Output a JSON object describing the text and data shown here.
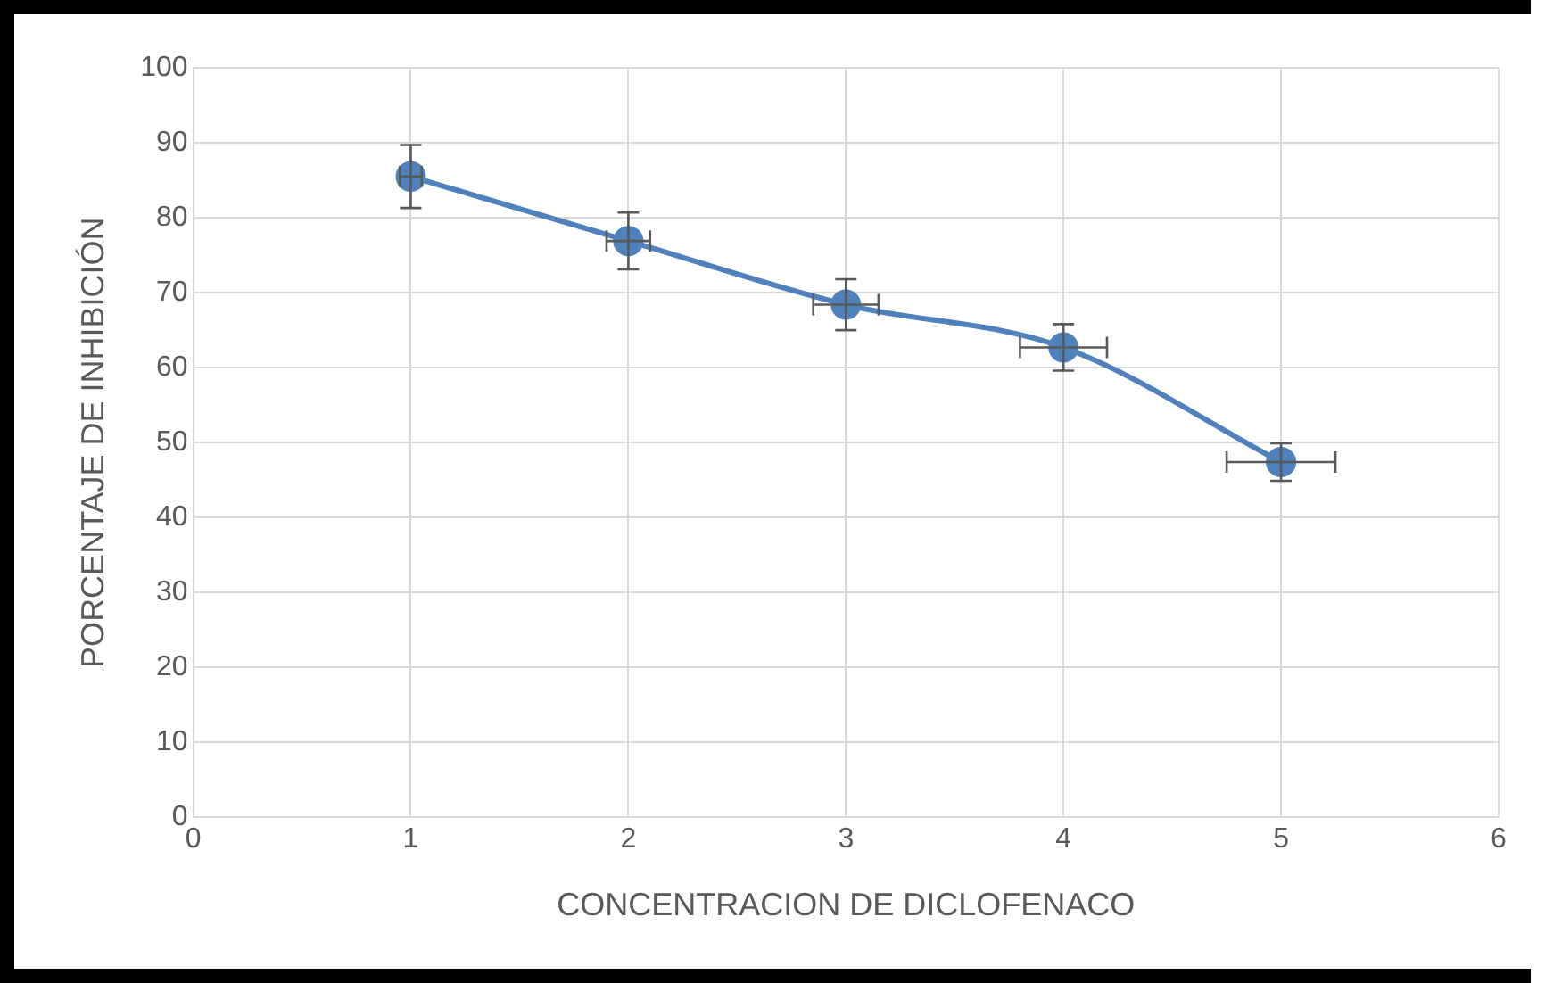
{
  "chart_data": {
    "type": "line",
    "xlabel": "CONCENTRACION DE DICLOFENACO",
    "ylabel": "PORCENTAJE DE INHIBICIÓN",
    "x": [
      1,
      2,
      3,
      4,
      5
    ],
    "series": [
      {
        "color": "#4f81bd",
        "values": [
          85.5,
          76.9,
          68.4,
          62.7,
          47.4
        ],
        "errors": [
          4.2,
          3.8,
          3.4,
          3.1,
          2.5
        ],
        "xerrors": [
          0.05,
          0.1,
          0.15,
          0.2,
          0.25
        ]
      }
    ],
    "xlim": [
      0,
      6
    ],
    "xticks": [
      0,
      1,
      2,
      3,
      4,
      5,
      6
    ],
    "ylim": [
      0,
      100
    ],
    "yticks": [
      0,
      10,
      20,
      30,
      40,
      50,
      60,
      70,
      80,
      90,
      100
    ],
    "grid": true,
    "marker": "circle",
    "line_style": "solid",
    "legend": false
  }
}
